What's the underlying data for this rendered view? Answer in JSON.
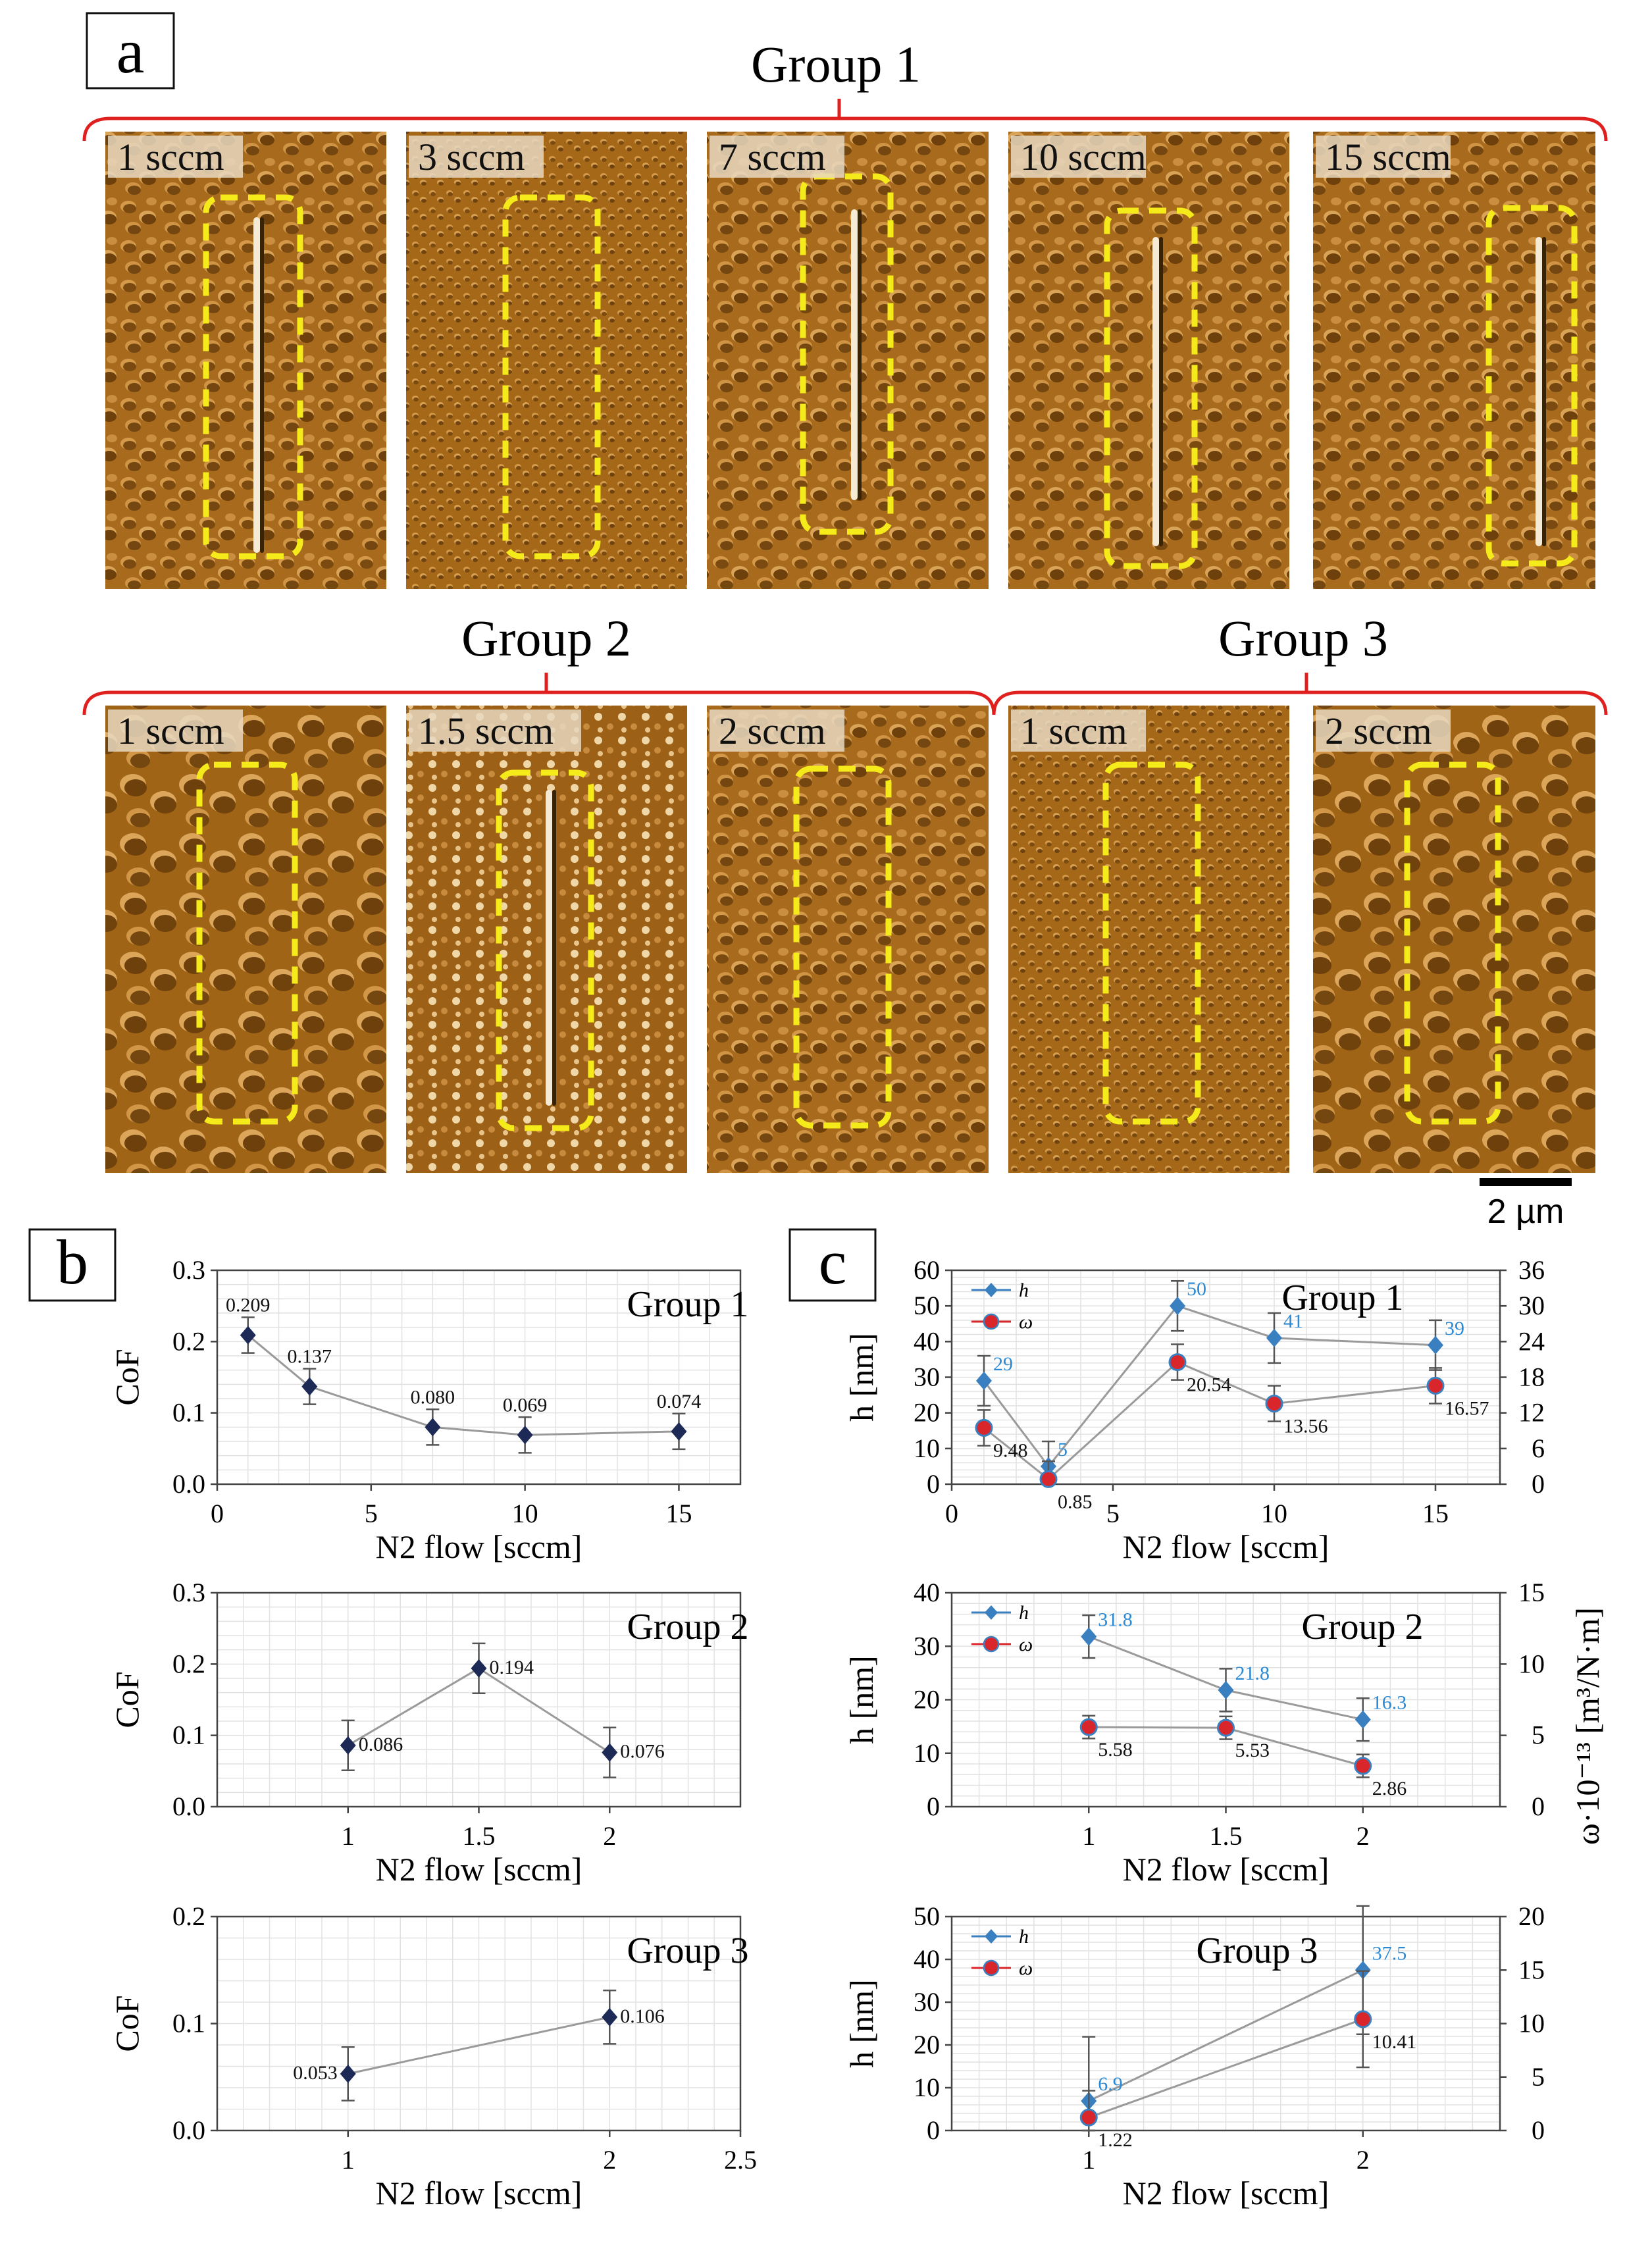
{
  "panel_a": {
    "letter": "a",
    "scale_bar": "2 µm",
    "groups": [
      {
        "title": "Group 1",
        "images": [
          "1 sccm",
          "3 sccm",
          "7 sccm",
          "10 sccm",
          "15 sccm"
        ]
      },
      {
        "title": "Group 2",
        "images": [
          "1 sccm",
          "1.5 sccm",
          "2 sccm"
        ]
      },
      {
        "title": "Group 3",
        "images": [
          "1 sccm",
          "2 sccm"
        ]
      }
    ]
  },
  "panel_b": {
    "letter": "b"
  },
  "panel_c": {
    "letter": "c"
  },
  "colors": {
    "bracket": "#e0201e",
    "dashed_box": "#f5ea1a",
    "afm_base": "#a86a1c",
    "cof_marker": "#1c2a55",
    "h_marker": "#3a7fc0",
    "w_marker": "#d8262a",
    "h_label": "#2a8ad6",
    "line": "#9a9a9a"
  },
  "chart_data": [
    {
      "id": "b1",
      "type": "scatter",
      "group_label": "Group 1",
      "xlabel": "N2 flow [sccm]",
      "ylabel": "CoF",
      "xlim": [
        0,
        17
      ],
      "ylim": [
        0,
        0.3
      ],
      "xticks": [
        "0",
        "5",
        "10",
        "15"
      ],
      "yticks": [
        "0.0",
        "0.1",
        "0.2",
        "0.3"
      ],
      "series": [
        {
          "x": [
            1,
            3,
            7,
            10,
            15
          ],
          "y": [
            0.209,
            0.137,
            0.08,
            0.069,
            0.074
          ],
          "err": [
            0.025,
            0.025,
            0.025,
            0.025,
            0.025
          ],
          "labels": [
            "0.209",
            "0.137",
            "0.080",
            "0.069",
            "0.074"
          ]
        }
      ]
    },
    {
      "id": "b2",
      "type": "scatter",
      "group_label": "Group 2",
      "xlabel": "N2 flow [sccm]",
      "ylabel": "CoF",
      "xlim": [
        0.5,
        2.5
      ],
      "ylim": [
        0,
        0.3
      ],
      "xticks": [
        "1",
        "1.5",
        "2"
      ],
      "yticks": [
        "0.0",
        "0.1",
        "0.2",
        "0.3"
      ],
      "series": [
        {
          "x": [
            1,
            1.5,
            2
          ],
          "y": [
            0.086,
            0.194,
            0.076
          ],
          "err": [
            0.035,
            0.035,
            0.035
          ],
          "labels": [
            "0.086",
            "0.194",
            "0.076"
          ]
        }
      ]
    },
    {
      "id": "b3",
      "type": "scatter",
      "group_label": "Group 3",
      "xlabel": "N2 flow [sccm]",
      "ylabel": "CoF",
      "xlim": [
        0.5,
        2.5
      ],
      "ylim": [
        0,
        0.2
      ],
      "xticks": [
        "1",
        "2",
        "2.5"
      ],
      "yticks": [
        "0.0",
        "0.1",
        "0.2"
      ],
      "series": [
        {
          "x": [
            1,
            2
          ],
          "y": [
            0.053,
            0.106
          ],
          "err": [
            0.025,
            0.025
          ],
          "labels": [
            "0.053",
            "0.106"
          ]
        }
      ]
    },
    {
      "id": "c1",
      "type": "scatter",
      "group_label": "Group 1",
      "xlabel": "N2 flow [sccm]",
      "ylabel": "h [nm]",
      "xlim": [
        0,
        17
      ],
      "ylim": [
        0,
        60
      ],
      "y2lim": [
        0,
        36
      ],
      "xticks": [
        "0",
        "5",
        "10",
        "15"
      ],
      "yticks": [
        "0",
        "10",
        "20",
        "30",
        "40",
        "50",
        "60"
      ],
      "y2ticks": [
        "0",
        "6",
        "12",
        "18",
        "24",
        "30",
        "36"
      ],
      "series": [
        {
          "name": "h",
          "x": [
            1,
            3,
            7,
            10,
            15
          ],
          "y": [
            29,
            5,
            50,
            41,
            39
          ],
          "err": [
            7,
            7,
            7,
            7,
            7
          ],
          "labels": [
            "29",
            "5",
            "50",
            "41",
            "39"
          ]
        },
        {
          "name": "ω",
          "x": [
            1,
            3,
            7,
            10,
            15
          ],
          "y": [
            9.48,
            0.85,
            20.54,
            13.56,
            16.57
          ],
          "err": [
            3,
            3,
            3,
            3,
            3
          ],
          "labels": [
            "9.48",
            "0.85",
            "20.54",
            "13.56",
            "16.57"
          ],
          "axis": "right"
        }
      ]
    },
    {
      "id": "c2",
      "type": "scatter",
      "group_label": "Group 2",
      "xlabel": "N2 flow [sccm]",
      "ylabel": "h [nm]",
      "y2label": "ω·10⁻¹³ [m³/N·m]",
      "xlim": [
        0.5,
        2.5
      ],
      "ylim": [
        0,
        40
      ],
      "y2lim": [
        0,
        15
      ],
      "xticks": [
        "1",
        "1.5",
        "2"
      ],
      "yticks": [
        "0",
        "10",
        "20",
        "30",
        "40"
      ],
      "y2ticks": [
        "0",
        "5",
        "10",
        "15"
      ],
      "series": [
        {
          "name": "h",
          "x": [
            1,
            1.5,
            2
          ],
          "y": [
            31.8,
            21.8,
            16.3
          ],
          "err": [
            4,
            4,
            4
          ],
          "labels": [
            "31.8",
            "21.8",
            "16.3"
          ]
        },
        {
          "name": "ω",
          "x": [
            1,
            1.5,
            2
          ],
          "y": [
            5.58,
            5.53,
            2.86
          ],
          "err": [
            0.8,
            0.8,
            0.8
          ],
          "labels": [
            "5.58",
            "5.53",
            "2.86"
          ],
          "axis": "right"
        }
      ]
    },
    {
      "id": "c3",
      "type": "scatter",
      "group_label": "Group 3",
      "xlabel": "N2 flow [sccm]",
      "ylabel": "h [nm]",
      "xlim": [
        0.5,
        2.5
      ],
      "ylim": [
        0,
        50
      ],
      "y2lim": [
        0,
        20
      ],
      "xticks": [
        "1",
        "2"
      ],
      "yticks": [
        "0",
        "10",
        "20",
        "30",
        "40",
        "50"
      ],
      "y2ticks": [
        "0",
        "5",
        "10",
        "15",
        "20"
      ],
      "series": [
        {
          "name": "h",
          "x": [
            1,
            2
          ],
          "y": [
            6.9,
            37.5
          ],
          "err": [
            15,
            15
          ],
          "labels": [
            "6.9",
            "37.5"
          ]
        },
        {
          "name": "ω",
          "x": [
            1,
            2
          ],
          "y": [
            1.22,
            10.41
          ],
          "err": [
            2.5,
            4.5
          ],
          "labels": [
            "1.22",
            "10.41"
          ],
          "axis": "right"
        }
      ]
    }
  ]
}
